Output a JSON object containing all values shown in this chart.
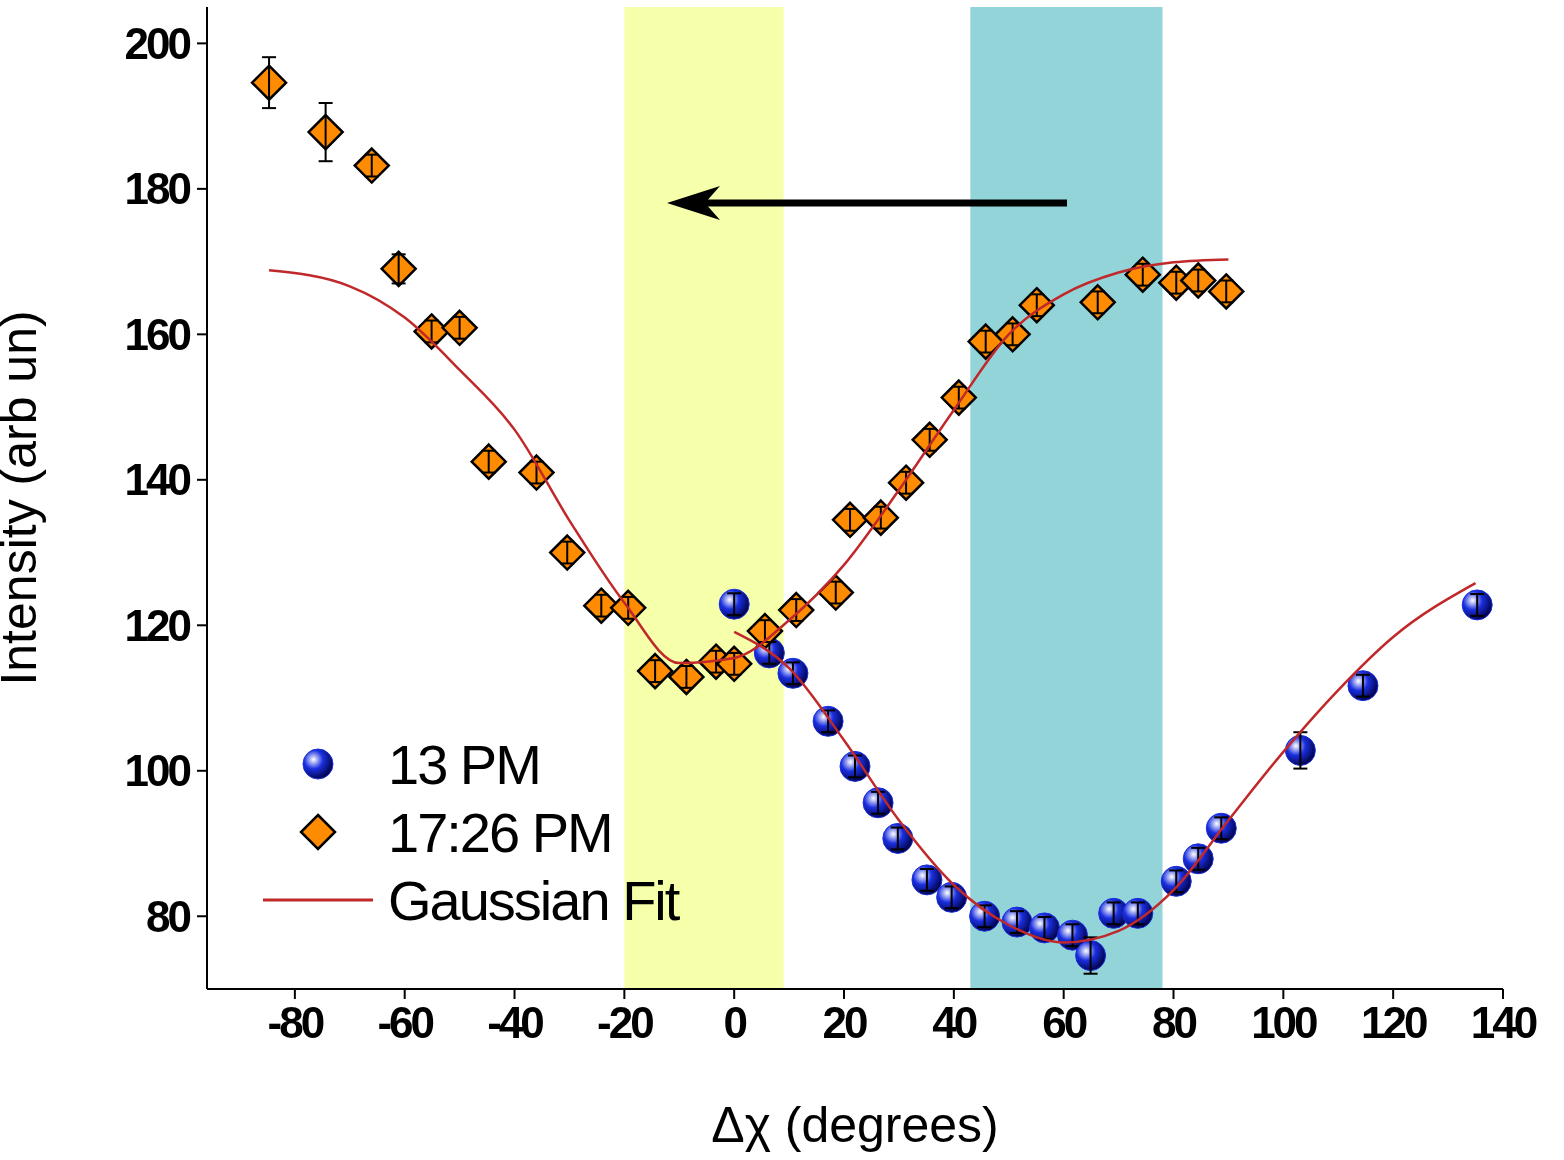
{
  "chart_data": {
    "type": "scatter",
    "xlabel": "Δχ (degrees)",
    "ylabel": "Intensity (arb un)",
    "xlim": [
      -96,
      140
    ],
    "xticks": [
      -80,
      -60,
      -40,
      -20,
      0,
      20,
      40,
      60,
      80,
      100,
      120,
      140
    ],
    "ylim": [
      70,
      205
    ],
    "yticks": [
      80,
      100,
      120,
      140,
      160,
      180,
      200
    ],
    "grid": false,
    "legend": "bottom left",
    "bands": [
      {
        "axis": "x",
        "from": -20,
        "to": 9,
        "color": "#f4ff9a"
      },
      {
        "axis": "x",
        "from": 43,
        "to": 78,
        "color": "#80cdd2"
      }
    ],
    "series": [
      {
        "name": "13 PM",
        "marker": "circle",
        "color": "#1a2fe0",
        "x": [
          0,
          6.4,
          10.7,
          17.1,
          22,
          26.2,
          29.8,
          35.1,
          39.6,
          45.6,
          51.5,
          56.5,
          61.6,
          64.9,
          69.1,
          73.5,
          80.5,
          84.5,
          88.7,
          103.1,
          114.5,
          135.3
        ],
        "values": [
          122.9,
          116.2,
          113.4,
          106.8,
          100.6,
          95.6,
          90.7,
          85,
          82.6,
          80,
          79.2,
          78.4,
          77.4,
          74.6,
          80.4,
          80.4,
          84.8,
          87.9,
          92.1,
          102.8,
          111.7,
          122.8
        ],
        "errors": [
          1.5,
          1.5,
          1.5,
          1.5,
          1.5,
          1.5,
          1.5,
          1.5,
          1.5,
          1.5,
          1.5,
          1.5,
          1.5,
          2.5,
          1.5,
          1.5,
          1.5,
          1.5,
          1.5,
          2.5,
          1.5,
          1.5
        ]
      },
      {
        "name": "17:26 PM",
        "marker": "diamond",
        "color": "#ff8c00",
        "x": [
          -84.7,
          -74.4,
          -66,
          -61.1,
          -55.1,
          -50,
          -44.7,
          -36,
          -30.4,
          -24.2,
          -19.3,
          -14.4,
          -8.7,
          -3.3,
          0,
          5.6,
          11.3,
          18.5,
          21.1,
          26.7,
          31.3,
          35.6,
          40.9,
          45.8,
          50.7,
          55.1,
          66.2,
          74.4,
          80.5,
          84.5,
          89.6
        ],
        "values": [
          194.6,
          187.8,
          183.2,
          169,
          160.4,
          160.9,
          142.5,
          141,
          130,
          122.7,
          122.4,
          113.7,
          112.9,
          115,
          114.7,
          119.2,
          122.1,
          124.5,
          134.5,
          134.8,
          139.6,
          145.5,
          151.3,
          159,
          160,
          164,
          164.4,
          168.2,
          167.1,
          167.4,
          165.9
        ],
        "errors": [
          3.5,
          4,
          1.5,
          2,
          1.5,
          1.5,
          1.5,
          1.5,
          1.5,
          1.5,
          1.5,
          1.5,
          1.5,
          1.5,
          1.5,
          1.5,
          1.5,
          1.5,
          1.5,
          1.5,
          1.5,
          1.5,
          1.5,
          1.5,
          1.5,
          1.5,
          1.5,
          1.5,
          1.5,
          1.5,
          1.5
        ]
      },
      {
        "name": "Gaussian Fit",
        "type": "line",
        "line_style": "solid",
        "color": "#c0282a",
        "x": [
          -84.7,
          -70,
          -60,
          -50,
          -40,
          -30,
          -20,
          -10,
          0,
          10,
          20,
          30,
          40,
          50,
          60,
          70,
          80,
          90
        ],
        "values": [
          168.8,
          166.6,
          162.3,
          155.1,
          146.9,
          134.4,
          123.1,
          114.8,
          115.5,
          120.7,
          128.3,
          138.6,
          149.6,
          160,
          165.5,
          168.5,
          169.9,
          170.3
        ]
      },
      {
        "type": "line",
        "line_style": "solid",
        "color": "#c0282a",
        "x": [
          0,
          10,
          20,
          30,
          40,
          50,
          60,
          70,
          80,
          90,
          100,
          110,
          120,
          135
        ],
        "values": [
          119.1,
          114.1,
          104.2,
          93.2,
          84.3,
          78.8,
          76.4,
          78,
          83.6,
          93.2,
          102.6,
          111.1,
          118.4,
          125.8
        ]
      }
    ]
  }
}
